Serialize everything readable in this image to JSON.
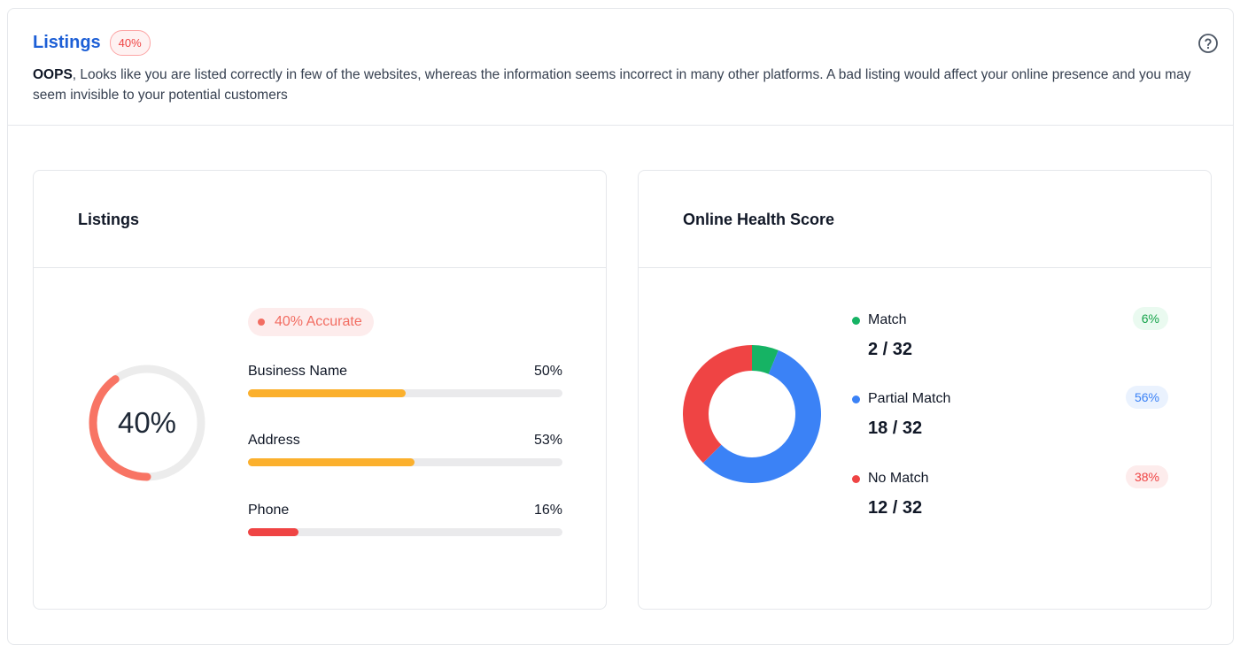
{
  "header": {
    "title": "Listings",
    "badge": "40%",
    "description_bold": "OOPS",
    "description_rest": ", Looks like you are listed correctly in few of the websites, whereas the information seems incorrect in many other platforms. A bad listing would affect your online presence and you may seem invisible to your potential customers",
    "help_icon": "question-circle-icon"
  },
  "listings_card": {
    "title": "Listings",
    "gauge_label": "40%",
    "gauge_value": 0.4,
    "accuracy_badge": "40% Accurate",
    "bars": [
      {
        "label": "Business Name",
        "pct_label": "50%",
        "value": 0.5,
        "color": "#fbb02d"
      },
      {
        "label": "Address",
        "pct_label": "53%",
        "value": 0.53,
        "color": "#fbb02d"
      },
      {
        "label": "Phone",
        "pct_label": "16%",
        "value": 0.16,
        "color": "#ef4444"
      }
    ]
  },
  "health_card": {
    "title": "Online Health Score",
    "items": [
      {
        "name": "Match",
        "value": "2 / 32",
        "pct": "6%",
        "count": 2,
        "color": "#16b364",
        "pct_bg": "#eafaf0",
        "pct_color": "#16a34a"
      },
      {
        "name": "Partial Match",
        "value": "18 / 32",
        "pct": "56%",
        "count": 18,
        "color": "#3b82f6",
        "pct_bg": "#eaf2fe",
        "pct_color": "#3b82f6"
      },
      {
        "name": "No Match",
        "value": "12 / 32",
        "pct": "38%",
        "count": 12,
        "color": "#ef4444",
        "pct_bg": "#fdecec",
        "pct_color": "#ef4444"
      }
    ],
    "total": 32
  }
}
